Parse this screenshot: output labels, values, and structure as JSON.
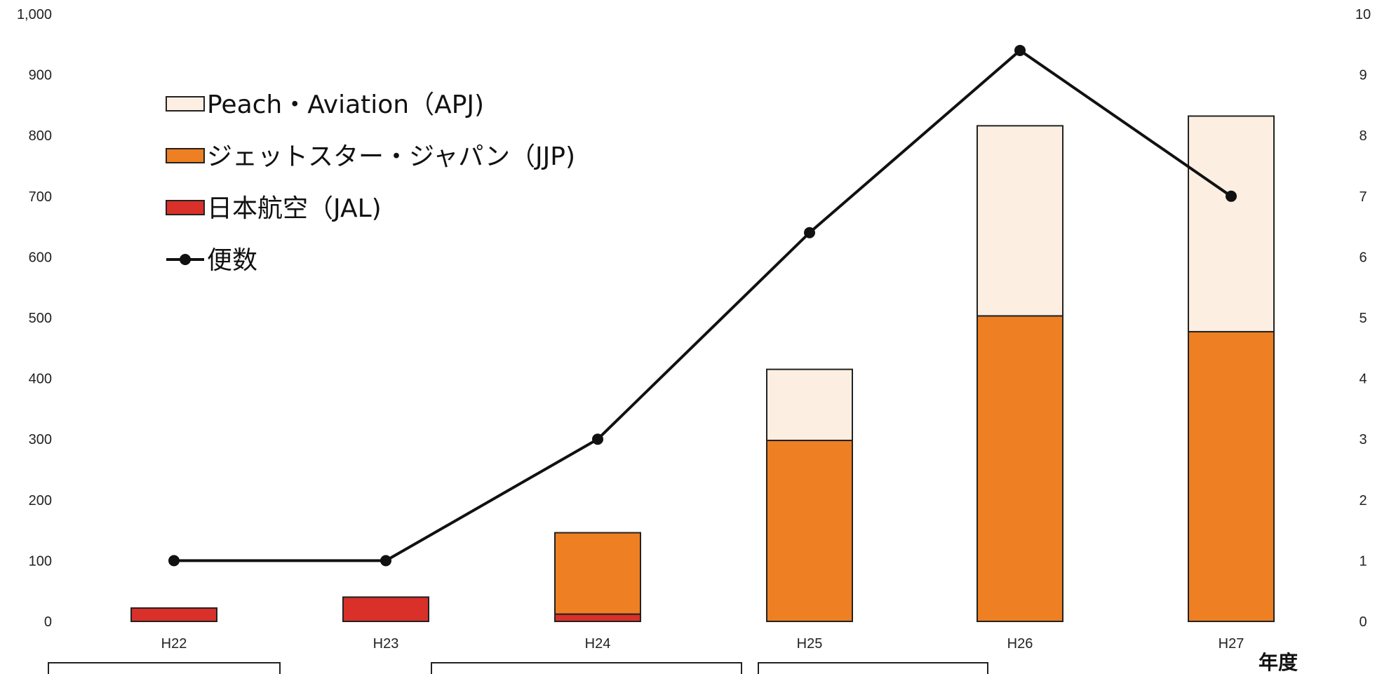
{
  "chart_data": {
    "type": "bar",
    "categories": [
      "H22",
      "H23",
      "H24",
      "H25",
      "H26",
      "H27"
    ],
    "xlabel": "年度",
    "ylim_left": [
      0,
      1000
    ],
    "yticks_left": [
      "0",
      "100",
      "200",
      "300",
      "400",
      "500",
      "600",
      "700",
      "800",
      "900",
      "1,000"
    ],
    "ylim_right": [
      0,
      10
    ],
    "yticks_right": [
      "0",
      "1",
      "2",
      "3",
      "4",
      "5",
      "6",
      "7",
      "8",
      "9",
      "10"
    ],
    "stacked": true,
    "series": [
      {
        "name": "日本航空（JAL)",
        "kind": "bar",
        "color": "#d9302a",
        "values": [
          22,
          40,
          12,
          0,
          0,
          0
        ]
      },
      {
        "name": "ジェットスター・ジャパン（JJP)",
        "kind": "bar",
        "color": "#ee7f22",
        "values": [
          0,
          0,
          134,
          298,
          503,
          477
        ]
      },
      {
        "name": "Peach・Aviation（APJ)",
        "kind": "bar",
        "color": "#fcefe2",
        "values": [
          0,
          0,
          0,
          117,
          313,
          355
        ]
      },
      {
        "name": "便数",
        "kind": "line",
        "axis": "right",
        "color": "#111111",
        "values": [
          1.0,
          1.0,
          3.0,
          6.4,
          9.4,
          7.0
        ]
      }
    ],
    "legend_order": [
      2,
      1,
      0,
      3
    ],
    "legend": "top-left",
    "grid": false
  }
}
